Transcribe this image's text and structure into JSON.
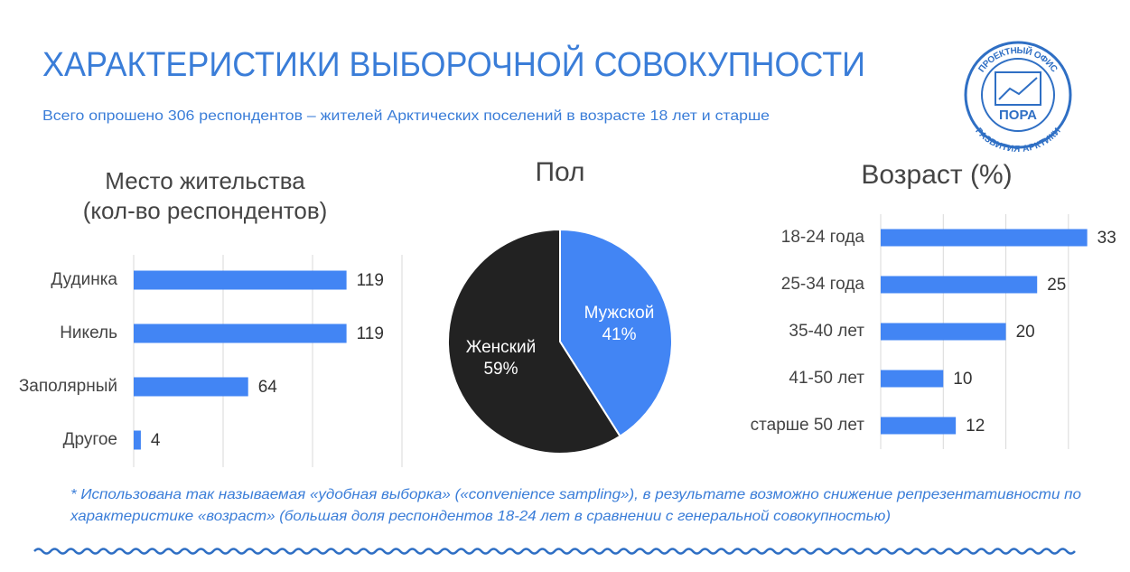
{
  "header": {
    "title": "ХАРАКТЕРИСТИКИ ВЫБОРОЧНОЙ СОВОКУПНОСТИ",
    "subtitle": "Всего опрошено 306 респондентов – жителей Арктических поселений в возрасте 18 лет и старше"
  },
  "logo": {
    "top": "ПРОЕКТНЫЙ ОФИС",
    "middle": "ПОРА",
    "bottom": "РАЗВИТИЯ АРКТИКИ"
  },
  "footnote": [
    "* Использована так называемая «удобная выборка» («convenience sampling»), в результате возможно снижение репрезентативности по",
    "характеристике «возраст» (большая доля респондентов 18-24 лет в сравнении с генеральной совокупностью)"
  ],
  "chart_data": [
    {
      "type": "hbar",
      "title": [
        "Место жительства",
        "(кол-во респондентов)"
      ],
      "categories": [
        "Дудинка",
        "Никель",
        "Заполярный",
        "Другое"
      ],
      "values": [
        119,
        119,
        64,
        4
      ],
      "color": "#4285f4",
      "xlim": [
        0,
        150
      ],
      "xticks": [
        0,
        50,
        100,
        150
      ],
      "grid": true
    },
    {
      "type": "pie",
      "title": [
        "Пол"
      ],
      "categories": [
        "Мужской",
        "Женский"
      ],
      "values": [
        41,
        59
      ],
      "value_labels": [
        "41%",
        "59%"
      ],
      "colors": [
        "#4285f4",
        "#222222"
      ]
    },
    {
      "type": "hbar",
      "title": [
        "Возраст (%)"
      ],
      "categories": [
        "18-24 года",
        "25-34 года",
        "35-40 лет",
        "41-50 лет",
        "старше 50 лет"
      ],
      "values": [
        33,
        25,
        20,
        10,
        12
      ],
      "color": "#4285f4",
      "xlim": [
        0,
        35
      ],
      "xticks": [
        0,
        10,
        20,
        30
      ],
      "grid": true
    }
  ]
}
